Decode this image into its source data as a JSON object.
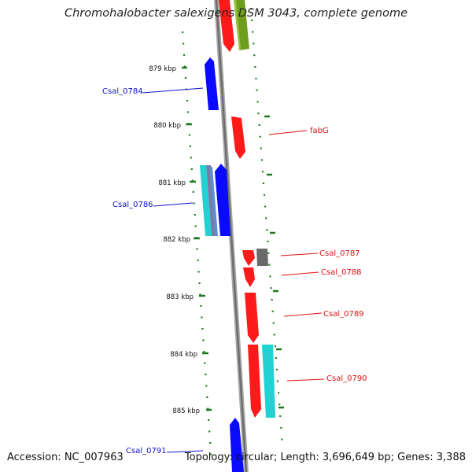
{
  "title": "Chromohalobacter salexigens DSM 3043, complete genome",
  "accession": "Accession: NC_007963",
  "topology_info": "Topology: circular; Length: 3,696,649 bp; Genes: 3,388",
  "colors": {
    "backbone": "#8c8c8c",
    "ticks": "#1f7a1f",
    "red_gene": "#ff1a1a",
    "blue_gene": "#0a0aff",
    "olive_gene": "#6e9e1e",
    "cyan_gene": "#22d2d2",
    "gray_gene": "#6a6a6a",
    "label_blue": "#1010cc",
    "label_red": "#dd1010"
  },
  "kbp_ticks": [
    "879 kbp",
    "880 kbp",
    "881 kbp",
    "882 kbp",
    "883 kbp",
    "884 kbp",
    "885 kbp"
  ],
  "gene_labels": [
    {
      "id": "Csal_0784",
      "color": "blue"
    },
    {
      "id": "fabG",
      "color": "red"
    },
    {
      "id": "Csal_0786",
      "color": "blue"
    },
    {
      "id": "Csal_0787",
      "color": "red"
    },
    {
      "id": "Csal_0788",
      "color": "red"
    },
    {
      "id": "Csal_0789",
      "color": "red"
    },
    {
      "id": "Csal_0790",
      "color": "red"
    },
    {
      "id": "Csal_0791",
      "color": "blue"
    }
  ]
}
